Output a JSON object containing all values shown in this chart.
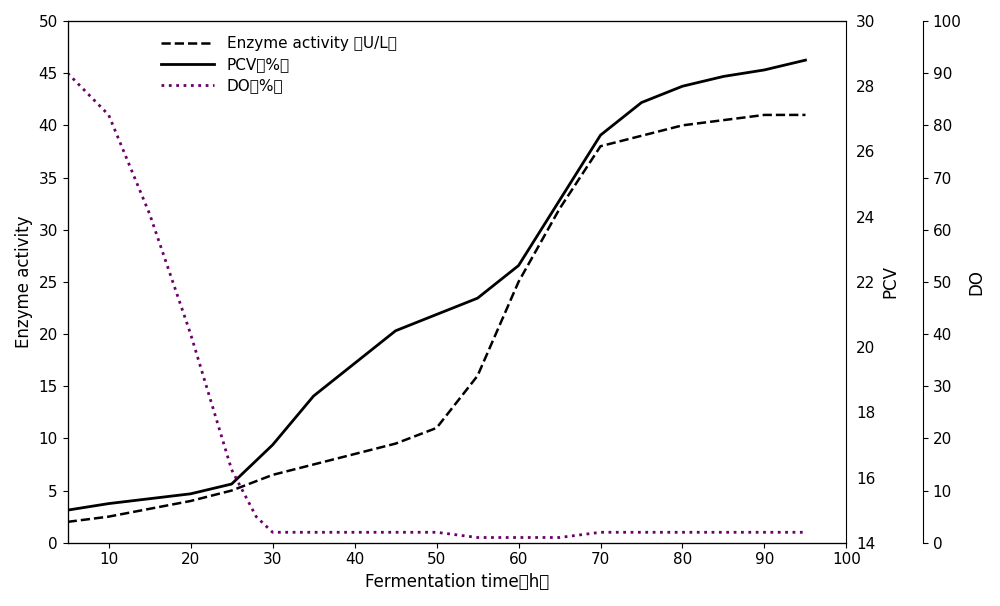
{
  "enzyme_activity_x": [
    5,
    10,
    20,
    25,
    30,
    35,
    40,
    45,
    50,
    55,
    60,
    65,
    70,
    75,
    80,
    85,
    90,
    95
  ],
  "enzyme_activity_y": [
    2,
    2.5,
    4,
    5,
    6.5,
    7.5,
    8.5,
    9.5,
    11,
    16,
    25,
    32,
    38,
    39,
    40,
    40.5,
    41,
    41
  ],
  "pcv_x": [
    5,
    10,
    20,
    25,
    30,
    35,
    40,
    45,
    50,
    55,
    60,
    65,
    70,
    75,
    80,
    85,
    90,
    95
  ],
  "pcv_y": [
    15.0,
    15.2,
    15.5,
    15.8,
    17.0,
    18.5,
    19.5,
    20.5,
    21.0,
    21.5,
    22.5,
    24.5,
    26.5,
    27.5,
    28.0,
    28.3,
    28.5,
    28.8
  ],
  "do_x": [
    5,
    10,
    15,
    20,
    25,
    28,
    30,
    35,
    40,
    45,
    50,
    55,
    60,
    65,
    70,
    75,
    80,
    85,
    90,
    95
  ],
  "do_y": [
    90,
    82,
    63,
    40,
    14,
    5,
    2,
    2,
    2,
    2,
    2,
    1,
    1,
    1,
    2,
    2,
    2,
    2,
    2,
    2
  ],
  "ylabel_left": "Enzyme activity",
  "ylabel_pcv": "PCV",
  "ylabel_do": "DO",
  "xlabel": "Fermentation time（h）",
  "ylim_left": [
    0,
    50
  ],
  "ylim_pcv": [
    14,
    30
  ],
  "ylim_do": [
    0,
    100
  ],
  "xlim": [
    5,
    100
  ],
  "xticks": [
    10,
    20,
    30,
    40,
    50,
    60,
    70,
    80,
    90,
    100
  ],
  "yticks_left": [
    0,
    5,
    10,
    15,
    20,
    25,
    30,
    35,
    40,
    45,
    50
  ],
  "yticks_pcv": [
    14,
    16,
    18,
    20,
    22,
    24,
    26,
    28,
    30
  ],
  "yticks_do": [
    0,
    10,
    20,
    30,
    40,
    50,
    60,
    70,
    80,
    90,
    100
  ],
  "legend_enzyme": "Enzyme activity （U/L）",
  "legend_pcv": "PCV（%）",
  "legend_do": "DO（%）",
  "line_color": "black",
  "do_line_color": "#6b006b",
  "background_color": "#ffffff",
  "fontsize_label": 12,
  "fontsize_tick": 11,
  "fontsize_legend": 11
}
